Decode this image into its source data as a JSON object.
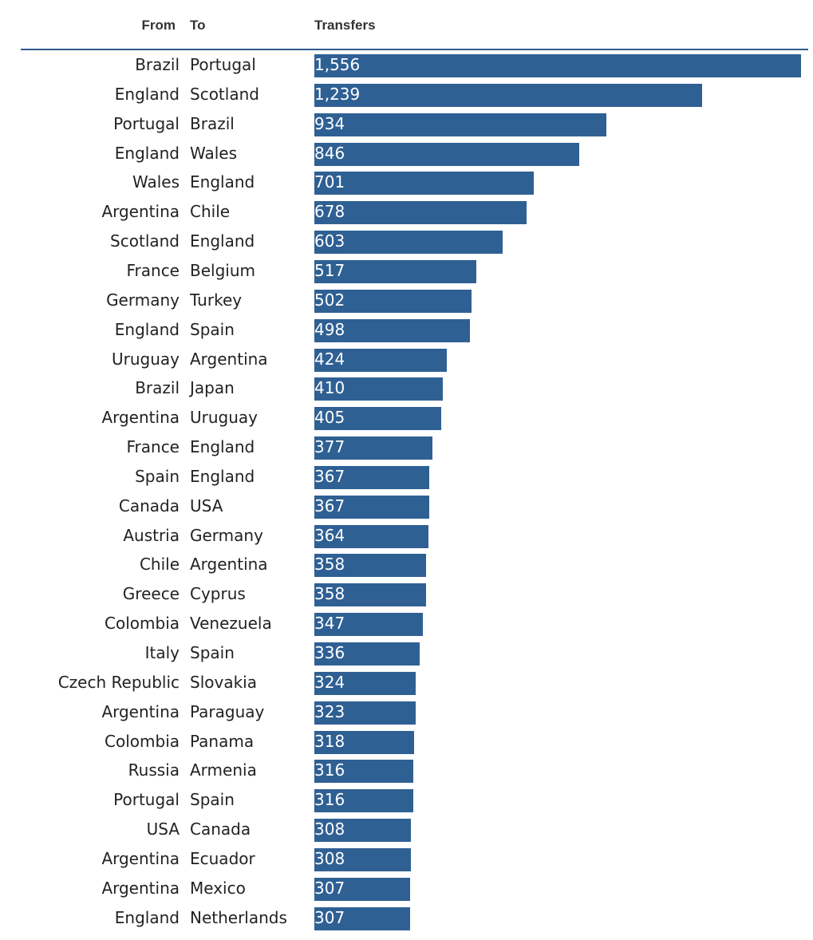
{
  "headers": {
    "from": "From",
    "to": "To",
    "transfers": "Transfers"
  },
  "colors": {
    "bar": "#2f6094",
    "rule": "#2e5a8c"
  },
  "chart_data": {
    "type": "bar",
    "orientation": "horizontal",
    "xlim": [
      0,
      1556
    ],
    "rows": [
      {
        "from": "Brazil",
        "to": "Portugal",
        "value": 1556,
        "label": "1,556"
      },
      {
        "from": "England",
        "to": "Scotland",
        "value": 1239,
        "label": "1,239"
      },
      {
        "from": "Portugal",
        "to": "Brazil",
        "value": 934,
        "label": "934"
      },
      {
        "from": "England",
        "to": "Wales",
        "value": 846,
        "label": "846"
      },
      {
        "from": "Wales",
        "to": "England",
        "value": 701,
        "label": "701"
      },
      {
        "from": "Argentina",
        "to": "Chile",
        "value": 678,
        "label": "678"
      },
      {
        "from": "Scotland",
        "to": "England",
        "value": 603,
        "label": "603"
      },
      {
        "from": "France",
        "to": "Belgium",
        "value": 517,
        "label": "517"
      },
      {
        "from": "Germany",
        "to": "Turkey",
        "value": 502,
        "label": "502"
      },
      {
        "from": "England",
        "to": "Spain",
        "value": 498,
        "label": "498"
      },
      {
        "from": "Uruguay",
        "to": "Argentina",
        "value": 424,
        "label": "424"
      },
      {
        "from": "Brazil",
        "to": "Japan",
        "value": 410,
        "label": "410"
      },
      {
        "from": "Argentina",
        "to": "Uruguay",
        "value": 405,
        "label": "405"
      },
      {
        "from": "France",
        "to": "England",
        "value": 377,
        "label": "377"
      },
      {
        "from": "Spain",
        "to": "England",
        "value": 367,
        "label": "367"
      },
      {
        "from": "Canada",
        "to": "USA",
        "value": 367,
        "label": "367"
      },
      {
        "from": "Austria",
        "to": "Germany",
        "value": 364,
        "label": "364"
      },
      {
        "from": "Chile",
        "to": "Argentina",
        "value": 358,
        "label": "358"
      },
      {
        "from": "Greece",
        "to": "Cyprus",
        "value": 358,
        "label": "358"
      },
      {
        "from": "Colombia",
        "to": "Venezuela",
        "value": 347,
        "label": "347"
      },
      {
        "from": "Italy",
        "to": "Spain",
        "value": 336,
        "label": "336"
      },
      {
        "from": "Czech Republic",
        "to": "Slovakia",
        "value": 324,
        "label": "324"
      },
      {
        "from": "Argentina",
        "to": "Paraguay",
        "value": 323,
        "label": "323"
      },
      {
        "from": "Colombia",
        "to": "Panama",
        "value": 318,
        "label": "318"
      },
      {
        "from": "Russia",
        "to": "Armenia",
        "value": 316,
        "label": "316"
      },
      {
        "from": "Portugal",
        "to": "Spain",
        "value": 316,
        "label": "316"
      },
      {
        "from": "USA",
        "to": "Canada",
        "value": 308,
        "label": "308"
      },
      {
        "from": "Argentina",
        "to": "Ecuador",
        "value": 308,
        "label": "308"
      },
      {
        "from": "Argentina",
        "to": "Mexico",
        "value": 307,
        "label": "307"
      },
      {
        "from": "England",
        "to": "Netherlands",
        "value": 307,
        "label": "307"
      }
    ]
  }
}
